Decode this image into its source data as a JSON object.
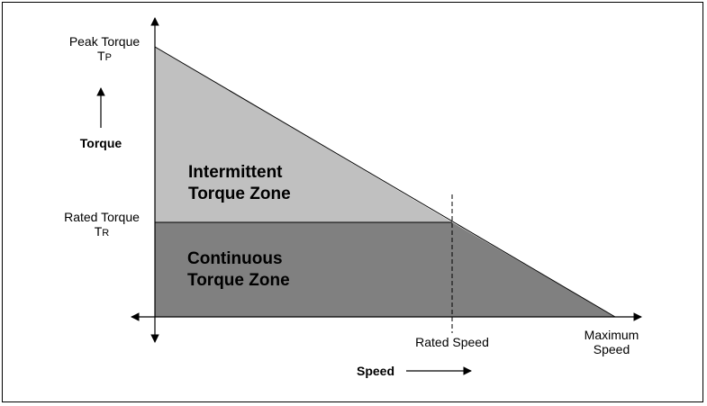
{
  "labels": {
    "peak_torque_line1": "Peak Torque",
    "peak_torque_symbol": "T",
    "peak_torque_subscript": "P",
    "rated_torque_line1": "Rated Torque",
    "rated_torque_symbol": "T",
    "rated_torque_subscript": "R",
    "torque_axis": "Torque",
    "speed_axis": "Speed",
    "rated_speed": "Rated Speed",
    "max_speed_line1": "Maximum",
    "max_speed_line2": "Speed"
  },
  "zones": {
    "intermittent_line1": "Intermittent",
    "intermittent_line2": "Torque Zone",
    "continuous_line1": "Continuous",
    "continuous_line2": "Torque Zone"
  },
  "colors": {
    "intermittent_fill": "#c0c0c0",
    "continuous_fill": "#808080",
    "line": "#000000",
    "background": "#ffffff"
  }
}
